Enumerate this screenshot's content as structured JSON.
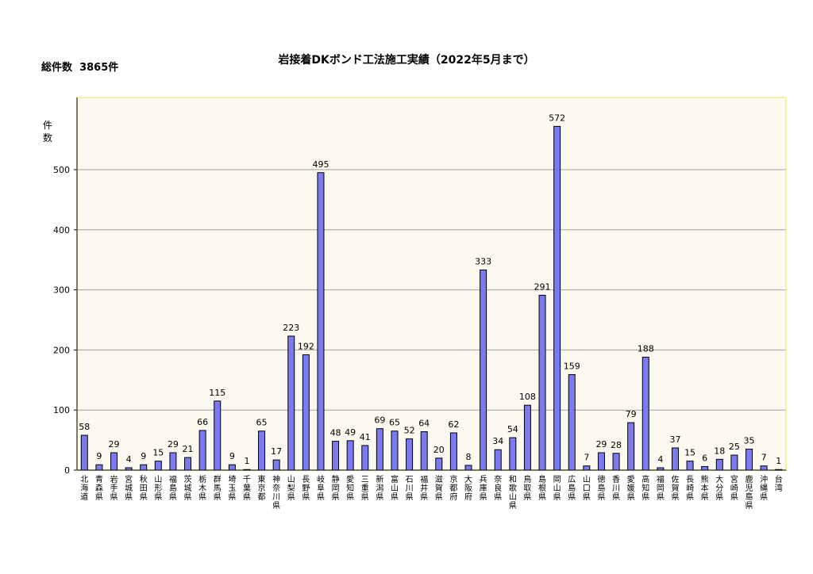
{
  "total_label": "総件数",
  "total_value": "3865件",
  "chart_data": {
    "type": "bar",
    "title": "岩接着DKボンド工法施工実績（2022年5月まで）",
    "ylabel": "件数",
    "xlabel": "",
    "ylim": [
      0,
      620
    ],
    "yticks": [
      0,
      100,
      200,
      300,
      400,
      500
    ],
    "grid": true,
    "bar_color": "#7b7bef",
    "plot_background": "#fbf9f0",
    "frame_color": "#eeee88",
    "categories": [
      "北海道",
      "青森県",
      "岩手県",
      "宮城県",
      "秋田県",
      "山形県",
      "福島県",
      "茨城県",
      "栃木県",
      "群馬県",
      "埼玉県",
      "千葉県",
      "東京都",
      "神奈川県",
      "山梨県",
      "長野県",
      "岐阜県",
      "静岡県",
      "愛知県",
      "三重県",
      "新潟県",
      "富山県",
      "石川県",
      "福井県",
      "滋賀県",
      "京都府",
      "大阪府",
      "兵庫県",
      "奈良県",
      "和歌山県",
      "鳥取県",
      "島根県",
      "岡山県",
      "広島県",
      "山口県",
      "徳島県",
      "香川県",
      "愛媛県",
      "高知県",
      "福岡県",
      "佐賀県",
      "長崎県",
      "熊本県",
      "大分県",
      "宮崎県",
      "鹿児島県",
      "沖縄県",
      "台湾"
    ],
    "values": [
      58,
      9,
      29,
      4,
      9,
      15,
      29,
      21,
      66,
      115,
      9,
      1,
      65,
      17,
      223,
      192,
      495,
      48,
      49,
      41,
      69,
      65,
      52,
      64,
      20,
      62,
      8,
      333,
      34,
      54,
      108,
      291,
      572,
      159,
      7,
      29,
      28,
      79,
      188,
      4,
      37,
      15,
      6,
      18,
      25,
      35,
      7,
      1
    ]
  }
}
